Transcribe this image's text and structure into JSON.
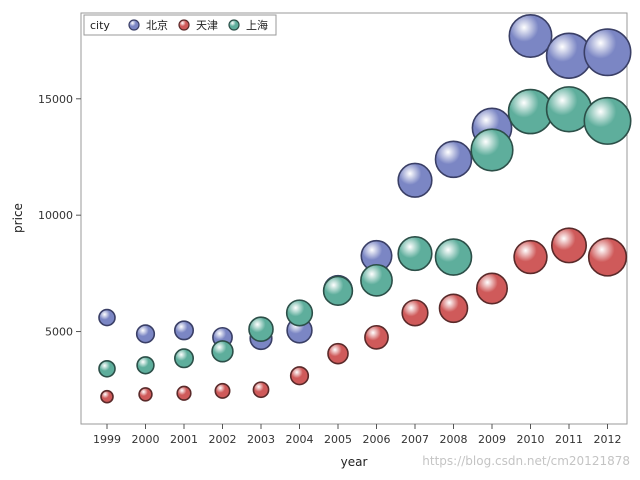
{
  "watermark": "https://blog.csdn.net/cm20121878",
  "chart_data": {
    "type": "scatter",
    "subtype": "bubble",
    "title": "",
    "xlabel": "year",
    "ylabel": "price",
    "categories": [
      "1999",
      "2000",
      "2001",
      "2002",
      "2003",
      "2004",
      "2005",
      "2006",
      "2007",
      "2008",
      "2009",
      "2010",
      "2011",
      "2012"
    ],
    "ylim": [
      1500,
      18300
    ],
    "yticks": [
      5000,
      10000,
      15000
    ],
    "grid": false,
    "legend": {
      "title": "city",
      "position": "top-left"
    },
    "series": [
      {
        "name": "北京",
        "color": "#7b86c4",
        "edge": "#3a3f66",
        "values": [
          5600,
          4900,
          5050,
          4750,
          4700,
          5050,
          6800,
          8250,
          11500,
          12400,
          13750,
          17700,
          16850,
          17000
        ],
        "sizes": [
          1,
          1.1,
          1.15,
          1.2,
          1.35,
          1.55,
          1.75,
          1.9,
          2.1,
          2.25,
          2.45,
          2.65,
          2.8,
          2.9
        ]
      },
      {
        "name": "天津",
        "color": "#cf5a5a",
        "edge": "#5a2a2a",
        "values": [
          2200,
          2300,
          2350,
          2450,
          2500,
          3100,
          4050,
          4750,
          5800,
          6000,
          6850,
          8200,
          8700,
          8200
        ],
        "sizes": [
          0.75,
          0.8,
          0.85,
          0.9,
          0.95,
          1.1,
          1.25,
          1.45,
          1.6,
          1.75,
          1.9,
          2.05,
          2.15,
          2.35
        ]
      },
      {
        "name": "上海",
        "color": "#5eae9c",
        "edge": "#2c4f48",
        "values": [
          3400,
          3550,
          3850,
          4150,
          5100,
          5800,
          6750,
          7200,
          8350,
          8200,
          12800,
          14450,
          14550,
          14050
        ],
        "sizes": [
          1,
          1.05,
          1.15,
          1.3,
          1.5,
          1.6,
          1.8,
          1.95,
          2.1,
          2.25,
          2.6,
          2.75,
          2.8,
          2.9
        ]
      }
    ]
  }
}
